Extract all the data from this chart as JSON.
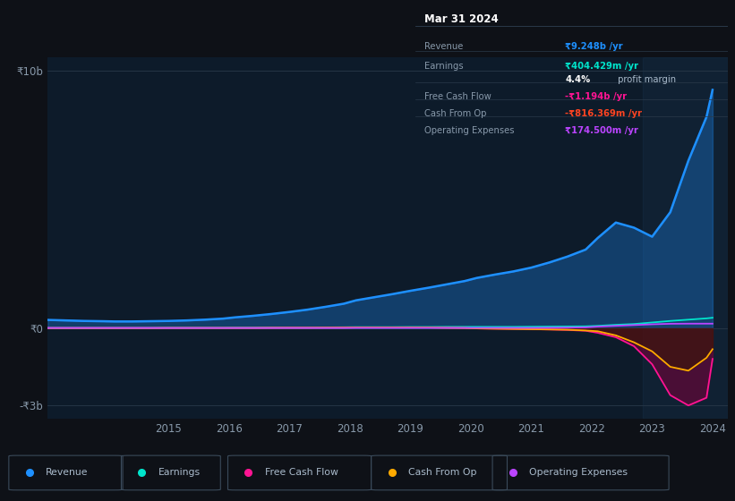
{
  "bg_color": "#0e1117",
  "chart_bg": "#0d1b2a",
  "y_label_color": "#8899aa",
  "x_label_color": "#8899aa",
  "years": [
    2013.0,
    2013.3,
    2013.6,
    2013.9,
    2014.1,
    2014.4,
    2014.7,
    2015.0,
    2015.3,
    2015.6,
    2015.9,
    2016.1,
    2016.4,
    2016.7,
    2017.0,
    2017.3,
    2017.6,
    2017.9,
    2018.1,
    2018.4,
    2018.7,
    2019.0,
    2019.3,
    2019.6,
    2019.9,
    2020.1,
    2020.4,
    2020.7,
    2021.0,
    2021.3,
    2021.6,
    2021.9,
    2022.1,
    2022.4,
    2022.7,
    2023.0,
    2023.3,
    2023.6,
    2023.9,
    2024.0
  ],
  "revenue": [
    0.32,
    0.3,
    0.28,
    0.27,
    0.26,
    0.26,
    0.27,
    0.28,
    0.3,
    0.33,
    0.37,
    0.42,
    0.48,
    0.55,
    0.63,
    0.72,
    0.83,
    0.95,
    1.08,
    1.2,
    1.32,
    1.45,
    1.57,
    1.7,
    1.83,
    1.95,
    2.08,
    2.2,
    2.35,
    2.55,
    2.78,
    3.05,
    3.5,
    4.1,
    3.9,
    3.55,
    4.5,
    6.5,
    8.2,
    9.248
  ],
  "earnings": [
    0.015,
    0.015,
    0.015,
    0.015,
    0.015,
    0.015,
    0.015,
    0.02,
    0.02,
    0.02,
    0.02,
    0.025,
    0.025,
    0.03,
    0.03,
    0.03,
    0.03,
    0.035,
    0.04,
    0.04,
    0.04,
    0.045,
    0.045,
    0.05,
    0.05,
    0.05,
    0.05,
    0.05,
    0.055,
    0.06,
    0.065,
    0.07,
    0.09,
    0.13,
    0.16,
    0.22,
    0.28,
    0.33,
    0.38,
    0.404
  ],
  "free_cash_flow": [
    0.01,
    0.01,
    0.01,
    0.01,
    0.01,
    0.01,
    0.01,
    0.01,
    0.01,
    0.01,
    0.01,
    0.01,
    0.01,
    0.015,
    0.02,
    0.02,
    0.02,
    0.025,
    0.03,
    0.03,
    0.03,
    0.03,
    0.025,
    0.015,
    0.005,
    -0.01,
    -0.02,
    -0.03,
    -0.04,
    -0.05,
    -0.07,
    -0.1,
    -0.18,
    -0.35,
    -0.7,
    -1.4,
    -2.6,
    -3.0,
    -2.7,
    -1.194
  ],
  "cash_from_op": [
    0.0,
    0.0,
    0.0,
    0.0,
    0.0,
    0.0,
    0.0,
    0.005,
    0.005,
    0.005,
    0.005,
    0.005,
    0.005,
    0.01,
    0.01,
    0.01,
    0.015,
    0.015,
    0.02,
    0.02,
    0.02,
    0.02,
    0.02,
    0.01,
    0.005,
    -0.01,
    -0.02,
    -0.03,
    -0.04,
    -0.05,
    -0.06,
    -0.09,
    -0.12,
    -0.28,
    -0.55,
    -0.9,
    -1.5,
    -1.65,
    -1.15,
    -0.816
  ],
  "op_expenses": [
    0.005,
    0.005,
    0.005,
    0.005,
    0.005,
    0.005,
    0.005,
    0.005,
    0.005,
    0.005,
    0.005,
    0.005,
    0.005,
    0.005,
    0.005,
    0.005,
    0.005,
    0.005,
    0.01,
    0.01,
    0.01,
    0.01,
    0.01,
    0.01,
    0.01,
    0.01,
    0.01,
    0.01,
    0.01,
    0.015,
    0.02,
    0.03,
    0.06,
    0.09,
    0.12,
    0.15,
    0.17,
    0.175,
    0.175,
    0.1745
  ],
  "revenue_color": "#1e90ff",
  "earnings_color": "#00e5cc",
  "fcf_color": "#ff1493",
  "cop_color": "#ffaa00",
  "opex_color": "#bb44ff",
  "ylim_min": -3.5,
  "ylim_max": 10.5,
  "xlim_min": 2013.0,
  "xlim_max": 2024.25,
  "ytick_vals": [
    -3.0,
    0.0,
    10.0
  ],
  "ytick_labels": [
    "-₹3b",
    "₹0",
    "₹10b"
  ],
  "xticks": [
    2015,
    2016,
    2017,
    2018,
    2019,
    2020,
    2021,
    2022,
    2023,
    2024
  ],
  "info_box": {
    "title": "Mar 31 2024",
    "rows": [
      {
        "label": "Revenue",
        "value": "₹9.248b /yr",
        "value_color": "#1e90ff"
      },
      {
        "label": "Earnings",
        "value": "₹404.429m /yr",
        "value_color": "#00e5cc"
      },
      {
        "label": "",
        "value": "4.4% profit margin",
        "value_color": "#ffffff",
        "bold_part": "4.4%"
      },
      {
        "label": "Free Cash Flow",
        "value": "-₹1.194b /yr",
        "value_color": "#ff1493"
      },
      {
        "label": "Cash From Op",
        "value": "-₹816.369m /yr",
        "value_color": "#ff4422"
      },
      {
        "label": "Operating Expenses",
        "value": "₹174.500m /yr",
        "value_color": "#bb44ff"
      }
    ]
  },
  "legend": [
    {
      "label": "Revenue",
      "color": "#1e90ff"
    },
    {
      "label": "Earnings",
      "color": "#00e5cc"
    },
    {
      "label": "Free Cash Flow",
      "color": "#ff1493"
    },
    {
      "label": "Cash From Op",
      "color": "#ffaa00"
    },
    {
      "label": "Operating Expenses",
      "color": "#bb44ff"
    }
  ]
}
